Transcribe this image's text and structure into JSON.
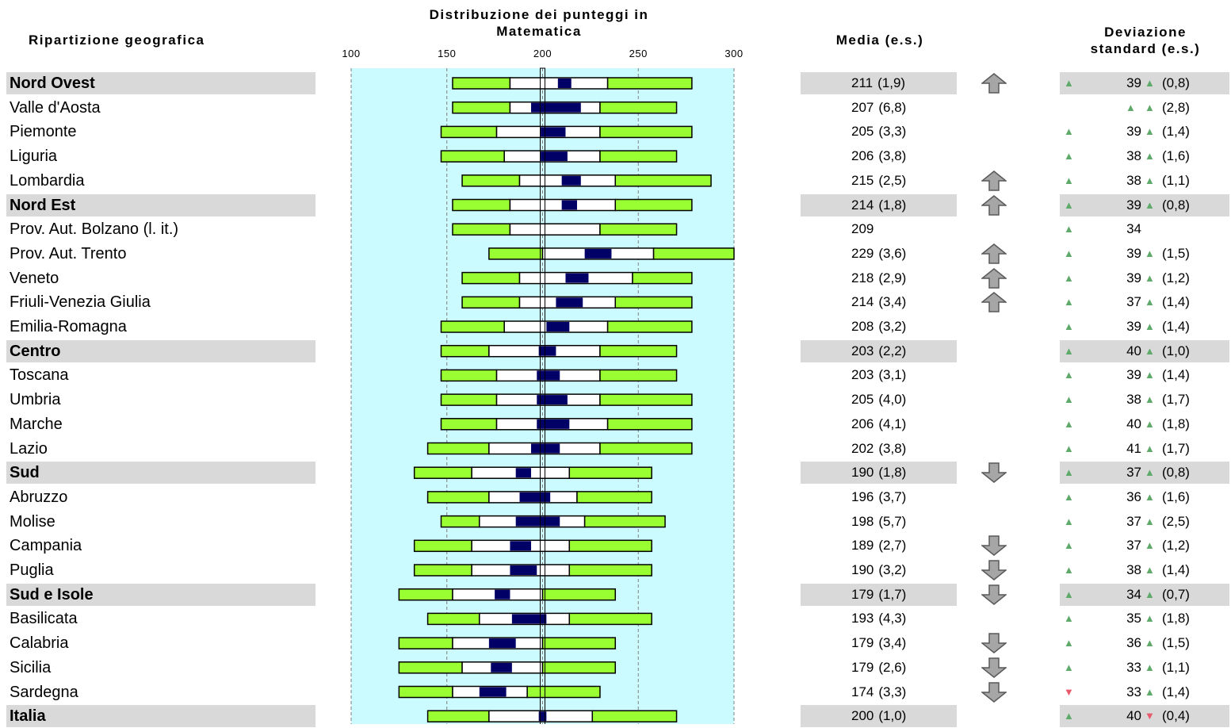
{
  "headers": {
    "region": "Ripartizione geografica",
    "dist_line1": "Distribuzione dei punteggi in",
    "dist_line2": "Matematica",
    "mean": "Media (e.s.)",
    "sd_line1": "Deviazione",
    "sd_line2": "standard (e.s.)"
  },
  "colors": {
    "plot_bg": "#ccfbff",
    "outer_band": "#99ff33",
    "inner_band": "#ffffff",
    "ci_band": "#000066",
    "row_highlight": "#d9d9d9",
    "arrow": "#8c8c8c",
    "up_triangle": "#5fa96a",
    "down_triangle": "#e8596b"
  },
  "chart_data": {
    "type": "box-percentile",
    "xlim": [
      100,
      300
    ],
    "ticks": [
      "100",
      "150",
      "200",
      "250",
      "300"
    ],
    "tick_values": [
      100,
      150,
      200,
      250,
      300
    ],
    "reference_value": 200,
    "grid": true,
    "rows": [
      {
        "name": "Nord Ovest",
        "bold": true,
        "p5": 153,
        "p25": 183,
        "ci_lo": 208,
        "ci_hi": 215,
        "p75": 234,
        "p95": 278,
        "mean": "211",
        "se": "(1,9)",
        "arrow": "up",
        "sd_tri": "up",
        "sd": "39",
        "se_tri": "up",
        "sd_se": "(0,8)"
      },
      {
        "name": "Valle d'Aosta",
        "bold": false,
        "p5": 153,
        "p25": 183,
        "ci_lo": 194,
        "ci_hi": 220,
        "p75": 230,
        "p95": 270,
        "mean": "207",
        "se": "(6,8)",
        "arrow": "",
        "sd_tri": "",
        "sd": "",
        "se_tri": "up",
        "sd_se": "(2,8)",
        "sd_extra_tri": "up"
      },
      {
        "name": "Piemonte",
        "bold": false,
        "p5": 147,
        "p25": 176,
        "ci_lo": 199,
        "ci_hi": 212,
        "p75": 230,
        "p95": 278,
        "mean": "205",
        "se": "(3,3)",
        "arrow": "",
        "sd_tri": "up",
        "sd": "39",
        "se_tri": "up",
        "sd_se": "(1,4)"
      },
      {
        "name": "Liguria",
        "bold": false,
        "p5": 147,
        "p25": 180,
        "ci_lo": 199,
        "ci_hi": 213,
        "p75": 230,
        "p95": 270,
        "mean": "206",
        "se": "(3,8)",
        "arrow": "",
        "sd_tri": "up",
        "sd": "38",
        "se_tri": "up",
        "sd_se": "(1,6)"
      },
      {
        "name": "Lombardia",
        "bold": false,
        "p5": 158,
        "p25": 188,
        "ci_lo": 210,
        "ci_hi": 220,
        "p75": 238,
        "p95": 288,
        "mean": "215",
        "se": "(2,5)",
        "arrow": "up",
        "sd_tri": "up",
        "sd": "38",
        "se_tri": "up",
        "sd_se": "(1,1)"
      },
      {
        "name": "Nord Est",
        "bold": true,
        "p5": 153,
        "p25": 183,
        "ci_lo": 210,
        "ci_hi": 218,
        "p75": 238,
        "p95": 278,
        "mean": "214",
        "se": "(1,8)",
        "arrow": "up",
        "sd_tri": "up",
        "sd": "39",
        "se_tri": "up",
        "sd_se": "(0,8)"
      },
      {
        "name": "Prov. Aut. Bolzano (l. it.)",
        "bold": false,
        "p5": 153,
        "p25": 183,
        "ci_lo": 209,
        "ci_hi": 209,
        "p75": 230,
        "p95": 270,
        "mean": "209",
        "se": "",
        "arrow": "",
        "sd_tri": "up",
        "sd": "34",
        "se_tri": "",
        "sd_se": ""
      },
      {
        "name": "Prov. Aut. Trento",
        "bold": false,
        "p5": 172,
        "p25": 200,
        "ci_lo": 222,
        "ci_hi": 236,
        "p75": 258,
        "p95": 300,
        "mean": "229",
        "se": "(3,6)",
        "arrow": "up",
        "sd_tri": "up",
        "sd": "39",
        "se_tri": "up",
        "sd_se": "(1,5)"
      },
      {
        "name": "Veneto",
        "bold": false,
        "p5": 158,
        "p25": 188,
        "ci_lo": 212,
        "ci_hi": 224,
        "p75": 247,
        "p95": 278,
        "mean": "218",
        "se": "(2,9)",
        "arrow": "up",
        "sd_tri": "up",
        "sd": "39",
        "se_tri": "up",
        "sd_se": "(1,2)"
      },
      {
        "name": "Friuli-Venezia Giulia",
        "bold": false,
        "p5": 158,
        "p25": 188,
        "ci_lo": 207,
        "ci_hi": 221,
        "p75": 238,
        "p95": 278,
        "mean": "214",
        "se": "(3,4)",
        "arrow": "up",
        "sd_tri": "up",
        "sd": "37",
        "se_tri": "up",
        "sd_se": "(1,4)"
      },
      {
        "name": "Emilia-Romagna",
        "bold": false,
        "p5": 147,
        "p25": 180,
        "ci_lo": 202,
        "ci_hi": 214,
        "p75": 234,
        "p95": 278,
        "mean": "208",
        "se": "(3,2)",
        "arrow": "",
        "sd_tri": "up",
        "sd": "39",
        "se_tri": "up",
        "sd_se": "(1,4)"
      },
      {
        "name": "Centro",
        "bold": true,
        "p5": 147,
        "p25": 172,
        "ci_lo": 198,
        "ci_hi": 207,
        "p75": 230,
        "p95": 270,
        "mean": "203",
        "se": "(2,2)",
        "arrow": "",
        "sd_tri": "up",
        "sd": "40",
        "se_tri": "up",
        "sd_se": "(1,0)"
      },
      {
        "name": "Toscana",
        "bold": false,
        "p5": 147,
        "p25": 176,
        "ci_lo": 197,
        "ci_hi": 209,
        "p75": 230,
        "p95": 270,
        "mean": "203",
        "se": "(3,1)",
        "arrow": "",
        "sd_tri": "up",
        "sd": "39",
        "se_tri": "up",
        "sd_se": "(1,4)"
      },
      {
        "name": "Umbria",
        "bold": false,
        "p5": 147,
        "p25": 176,
        "ci_lo": 197,
        "ci_hi": 213,
        "p75": 230,
        "p95": 278,
        "mean": "205",
        "se": "(4,0)",
        "arrow": "",
        "sd_tri": "up",
        "sd": "38",
        "se_tri": "up",
        "sd_se": "(1,7)"
      },
      {
        "name": "Marche",
        "bold": false,
        "p5": 147,
        "p25": 176,
        "ci_lo": 197,
        "ci_hi": 214,
        "p75": 234,
        "p95": 278,
        "mean": "206",
        "se": "(4,1)",
        "arrow": "",
        "sd_tri": "up",
        "sd": "40",
        "se_tri": "up",
        "sd_se": "(1,8)"
      },
      {
        "name": "Lazio",
        "bold": false,
        "p5": 140,
        "p25": 172,
        "ci_lo": 194,
        "ci_hi": 209,
        "p75": 230,
        "p95": 278,
        "mean": "202",
        "se": "(3,8)",
        "arrow": "",
        "sd_tri": "up",
        "sd": "41",
        "se_tri": "up",
        "sd_se": "(1,7)"
      },
      {
        "name": "Sud",
        "bold": true,
        "p5": 133,
        "p25": 163,
        "ci_lo": 186,
        "ci_hi": 194,
        "p75": 214,
        "p95": 257,
        "mean": "190",
        "se": "(1,8)",
        "arrow": "down",
        "sd_tri": "up",
        "sd": "37",
        "se_tri": "up",
        "sd_se": "(0,8)"
      },
      {
        "name": "Abruzzo",
        "bold": false,
        "p5": 140,
        "p25": 172,
        "ci_lo": 188,
        "ci_hi": 204,
        "p75": 218,
        "p95": 257,
        "mean": "196",
        "se": "(3,7)",
        "arrow": "",
        "sd_tri": "up",
        "sd": "36",
        "se_tri": "up",
        "sd_se": "(1,6)"
      },
      {
        "name": "Molise",
        "bold": false,
        "p5": 147,
        "p25": 167,
        "ci_lo": 186,
        "ci_hi": 209,
        "p75": 222,
        "p95": 264,
        "mean": "198",
        "se": "(5,7)",
        "arrow": "",
        "sd_tri": "up",
        "sd": "37",
        "se_tri": "up",
        "sd_se": "(2,5)"
      },
      {
        "name": "Campania",
        "bold": false,
        "p5": 133,
        "p25": 163,
        "ci_lo": 183,
        "ci_hi": 194,
        "p75": 214,
        "p95": 257,
        "mean": "189",
        "se": "(2,7)",
        "arrow": "down",
        "sd_tri": "up",
        "sd": "37",
        "se_tri": "up",
        "sd_se": "(1,2)"
      },
      {
        "name": "Puglia",
        "bold": false,
        "p5": 133,
        "p25": 163,
        "ci_lo": 183,
        "ci_hi": 197,
        "p75": 214,
        "p95": 257,
        "mean": "190",
        "se": "(3,2)",
        "arrow": "down",
        "sd_tri": "up",
        "sd": "38",
        "se_tri": "up",
        "sd_se": "(1,4)"
      },
      {
        "name": "Sud e Isole",
        "bold": true,
        "p5": 125,
        "p25": 153,
        "ci_lo": 175,
        "ci_hi": 183,
        "p75": 200,
        "p95": 238,
        "mean": "179",
        "se": "(1,7)",
        "arrow": "down",
        "sd_tri": "up",
        "sd": "34",
        "se_tri": "up",
        "sd_se": "(0,7)"
      },
      {
        "name": "Basilicata",
        "bold": false,
        "p5": 140,
        "p25": 167,
        "ci_lo": 184,
        "ci_hi": 202,
        "p75": 214,
        "p95": 257,
        "mean": "193",
        "se": "(4,3)",
        "arrow": "",
        "sd_tri": "up",
        "sd": "35",
        "se_tri": "up",
        "sd_se": "(1,8)"
      },
      {
        "name": "Calabria",
        "bold": false,
        "p5": 125,
        "p25": 153,
        "ci_lo": 172,
        "ci_hi": 186,
        "p75": 200,
        "p95": 238,
        "mean": "179",
        "se": "(3,4)",
        "arrow": "down",
        "sd_tri": "up",
        "sd": "36",
        "se_tri": "up",
        "sd_se": "(1,5)"
      },
      {
        "name": "Sicilia",
        "bold": false,
        "p5": 125,
        "p25": 158,
        "ci_lo": 173,
        "ci_hi": 184,
        "p75": 200,
        "p95": 238,
        "mean": "179",
        "se": "(2,6)",
        "arrow": "down",
        "sd_tri": "up",
        "sd": "33",
        "se_tri": "up",
        "sd_se": "(1,1)"
      },
      {
        "name": "Sardegna",
        "bold": false,
        "p5": 125,
        "p25": 153,
        "ci_lo": 167,
        "ci_hi": 181,
        "p75": 192,
        "p95": 230,
        "mean": "174",
        "se": "(3,3)",
        "arrow": "down",
        "sd_tri": "down",
        "sd": "33",
        "se_tri": "up",
        "sd_se": "(1,4)"
      },
      {
        "name": "Italia",
        "bold": true,
        "p5": 140,
        "p25": 172,
        "ci_lo": 198,
        "ci_hi": 202,
        "p75": 226,
        "p95": 270,
        "mean": "200",
        "se": "(1,0)",
        "arrow": "",
        "sd_tri": "up",
        "sd": "40",
        "se_tri": "down",
        "sd_se": "(0,4)"
      }
    ]
  }
}
